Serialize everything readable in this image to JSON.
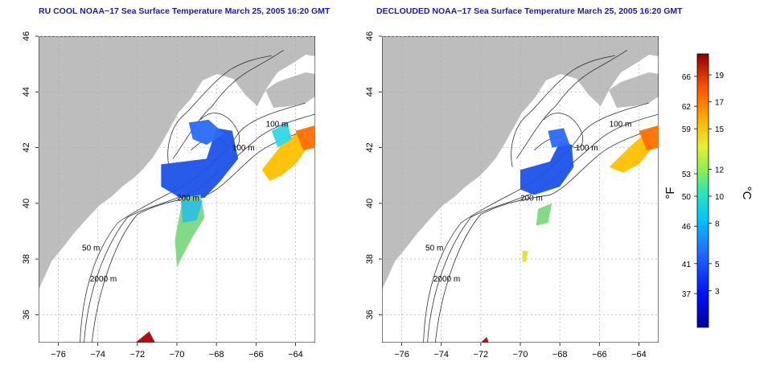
{
  "panels": [
    {
      "title": "RU COOL NOAA−17 Sea Surface Temperature March 25, 2005 16:20 GMT",
      "variant": "full"
    },
    {
      "title": "DECLOUDED NOAA−17 Sea Surface Temperature March 25, 2005 16:20 GMT",
      "variant": "declouded"
    }
  ],
  "map": {
    "lon_ticks": [
      "−76",
      "−74",
      "−72",
      "−70",
      "−68",
      "−66",
      "−64"
    ],
    "lat_ticks": [
      "36",
      "38",
      "40",
      "42",
      "44",
      "46"
    ],
    "lon_range": [
      -77,
      -63
    ],
    "lat_range": [
      35,
      46
    ],
    "contours": [
      {
        "label": "100 m"
      },
      {
        "label": "100 m"
      },
      {
        "label": "200 m"
      },
      {
        "label": "50 m"
      },
      {
        "label": "2000 m"
      },
      {
        "label": "200 m"
      }
    ],
    "colors": {
      "land": "#bdbdbd",
      "water": "#ffffff",
      "grid": "#b0b0b0"
    }
  },
  "colorbar": {
    "f_label": "°F",
    "c_label": "°C",
    "f_ticks": [
      "66",
      "62",
      "59",
      "53",
      "50",
      "46",
      "41",
      "37"
    ],
    "c_ticks": [
      "19",
      "17",
      "15",
      "12",
      "10",
      "8",
      "5",
      "3"
    ],
    "colors": [
      "#0000a0",
      "#0000ff",
      "#1e6dff",
      "#00c8ff",
      "#30e8c0",
      "#80ff60",
      "#e0f030",
      "#ffc000",
      "#ff7000",
      "#e01000",
      "#900000"
    ]
  }
}
